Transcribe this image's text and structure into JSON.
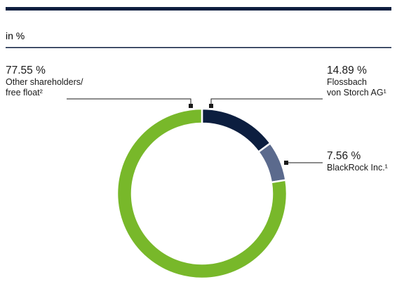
{
  "chart_data": {
    "type": "donut",
    "subtitle": "in %",
    "categories": [
      "Flossbach\nvon Storch AG¹",
      "BlackRock Inc.¹",
      "Other shareholders/\nfree float²"
    ],
    "values": [
      14.89,
      7.56,
      77.55
    ],
    "value_labels": [
      "14.89 %",
      "7.56 %",
      "77.55 %"
    ],
    "colors": [
      "#0c1e3f",
      "#5b6a8d",
      "#78b82a"
    ]
  }
}
